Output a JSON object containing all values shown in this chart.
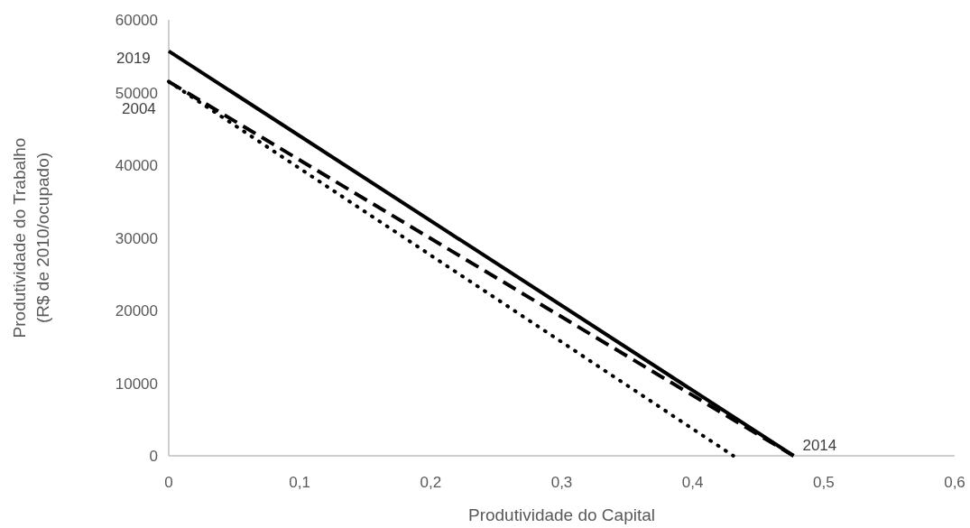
{
  "chart_data": {
    "type": "line",
    "xlabel": "Produtividade do Capital",
    "ylabel": "Produtividade do Trabalho\n(R$ de 2010/ocupado)",
    "xlim": [
      0,
      0.6
    ],
    "ylim": [
      0,
      60000
    ],
    "xticks": [
      {
        "value": 0,
        "label": "0"
      },
      {
        "value": 0.1,
        "label": "0,1"
      },
      {
        "value": 0.2,
        "label": "0,2"
      },
      {
        "value": 0.3,
        "label": "0,3"
      },
      {
        "value": 0.4,
        "label": "0,4"
      },
      {
        "value": 0.5,
        "label": "0,5"
      },
      {
        "value": 0.6,
        "label": "0,6"
      }
    ],
    "yticks": [
      0,
      10000,
      20000,
      30000,
      40000,
      50000,
      60000
    ],
    "grid": false,
    "marker": "none",
    "series": [
      {
        "name": "2019",
        "color": "#000000",
        "line_style": "solid",
        "x": [
          0,
          0.477
        ],
        "values": [
          55700,
          0
        ]
      },
      {
        "name": "2014",
        "color": "#000000",
        "line_style": "dashed",
        "x": [
          0,
          0.477
        ],
        "values": [
          51500,
          0
        ]
      },
      {
        "name": "2004",
        "color": "#000000",
        "line_style": "dotted",
        "x": [
          0,
          0.431
        ],
        "values": [
          51500,
          0
        ]
      }
    ]
  }
}
